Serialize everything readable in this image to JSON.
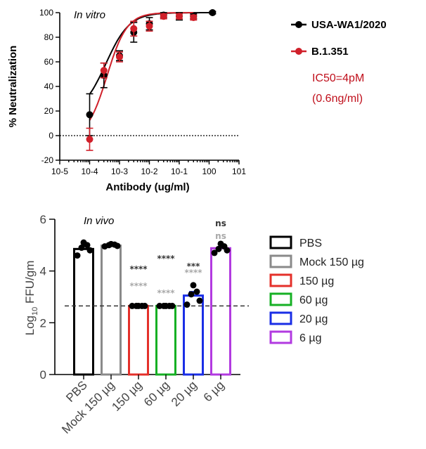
{
  "chart_data": [
    {
      "type": "line",
      "annotation": "In vitro",
      "xlabel": "Antibody (ug/ml)",
      "ylabel": "% Neutralization",
      "x_scale": "log",
      "xlim": [
        1e-05,
        10
      ],
      "ylim": [
        -20,
        100
      ],
      "x_tick_labels": [
        "10-5",
        "10-4",
        "10-3",
        "10-2",
        "10-1",
        "100",
        "101"
      ],
      "y_ticks": [
        -20,
        0,
        20,
        40,
        60,
        80,
        100
      ],
      "reference_line": 0,
      "legend_position": "right",
      "note_lines": [
        "IC50=4pM",
        "(0.6ng/ml)"
      ],
      "series": [
        {
          "name": "USA-WA1/2020",
          "color": "#000000",
          "x": [
            0.0001,
            0.0003,
            0.001,
            0.003,
            0.01,
            0.03,
            0.1,
            0.3,
            1.3
          ],
          "y": [
            17,
            49,
            65,
            84,
            91,
            98,
            97,
            97,
            100
          ],
          "err": [
            17,
            10,
            4,
            8,
            5,
            2,
            3,
            2,
            1
          ]
        },
        {
          "name": "B.1.351",
          "color": "#d0202a",
          "x": [
            0.0001,
            0.0003,
            0.001,
            0.003,
            0.01,
            0.03,
            0.1,
            0.3
          ],
          "y": [
            -3,
            53,
            64,
            87,
            89,
            97,
            97,
            96
          ],
          "err": [
            9,
            6,
            4,
            6,
            4,
            2,
            2,
            2
          ]
        }
      ]
    },
    {
      "type": "bar",
      "annotation": "In vivo",
      "ylabel_prefix": "Log",
      "ylabel_sub": "10",
      "ylabel_suffix": " FFU/gm",
      "ylim": [
        0,
        6
      ],
      "y_ticks": [
        0,
        2,
        4,
        6
      ],
      "reference_line": 2.65,
      "legend_position": "right",
      "categories": [
        "PBS",
        "Mock 150 µg",
        "150 µg",
        "60 µg",
        "20 µg",
        "6 µg"
      ],
      "values": [
        4.85,
        4.98,
        2.65,
        2.65,
        3.05,
        4.88
      ],
      "err": [
        0.12,
        0.04,
        0,
        0,
        0.15,
        0.05
      ],
      "colors": [
        "#000000",
        "#8a8a8a",
        "#e4302a",
        "#16b024",
        "#1a2ee6",
        "#b23ae0"
      ],
      "points": [
        [
          4.6,
          4.8,
          4.9,
          5.0,
          5.1
        ],
        [
          4.95,
          4.97,
          5.0,
          5.02,
          5.04
        ],
        [
          2.65,
          2.65,
          2.65,
          2.65,
          2.65
        ],
        [
          2.65,
          2.65,
          2.65,
          2.65,
          2.65
        ],
        [
          2.7,
          2.85,
          3.1,
          3.2,
          3.45
        ],
        [
          4.7,
          4.8,
          4.85,
          4.95,
          5.05
        ]
      ],
      "significance_black": [
        "",
        "",
        "****",
        "****",
        "***",
        "ns"
      ],
      "significance_gray": [
        "",
        "",
        "****",
        "****",
        "****",
        "ns"
      ]
    }
  ]
}
